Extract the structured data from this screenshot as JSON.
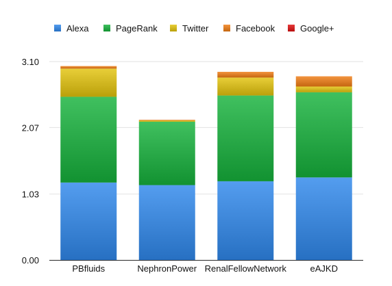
{
  "chart_data": {
    "type": "bar",
    "stacked": true,
    "categories": [
      "PBfluids",
      "NephronPower",
      "RenalFellowNetwork",
      "eAJKD"
    ],
    "series": [
      {
        "name": "Alexa",
        "color": "#2f88ec",
        "values": [
          1.21,
          1.17,
          1.23,
          1.29
        ]
      },
      {
        "name": "PageRank",
        "color": "#16b23c",
        "values": [
          1.34,
          0.99,
          1.34,
          1.33
        ]
      },
      {
        "name": "Twitter",
        "color": "#e3c30c",
        "values": [
          0.44,
          0.02,
          0.28,
          0.09
        ]
      },
      {
        "name": "Facebook",
        "color": "#f07c14",
        "values": [
          0.04,
          0.01,
          0.09,
          0.16
        ]
      },
      {
        "name": "Google+",
        "color": "#e01010",
        "values": [
          0,
          0,
          0,
          0
        ]
      }
    ],
    "y_ticks": [
      "0.00",
      "1.03",
      "2.07",
      "3.10"
    ],
    "ylim": [
      0,
      3.1
    ],
    "legend_position": "top",
    "grid": true
  }
}
